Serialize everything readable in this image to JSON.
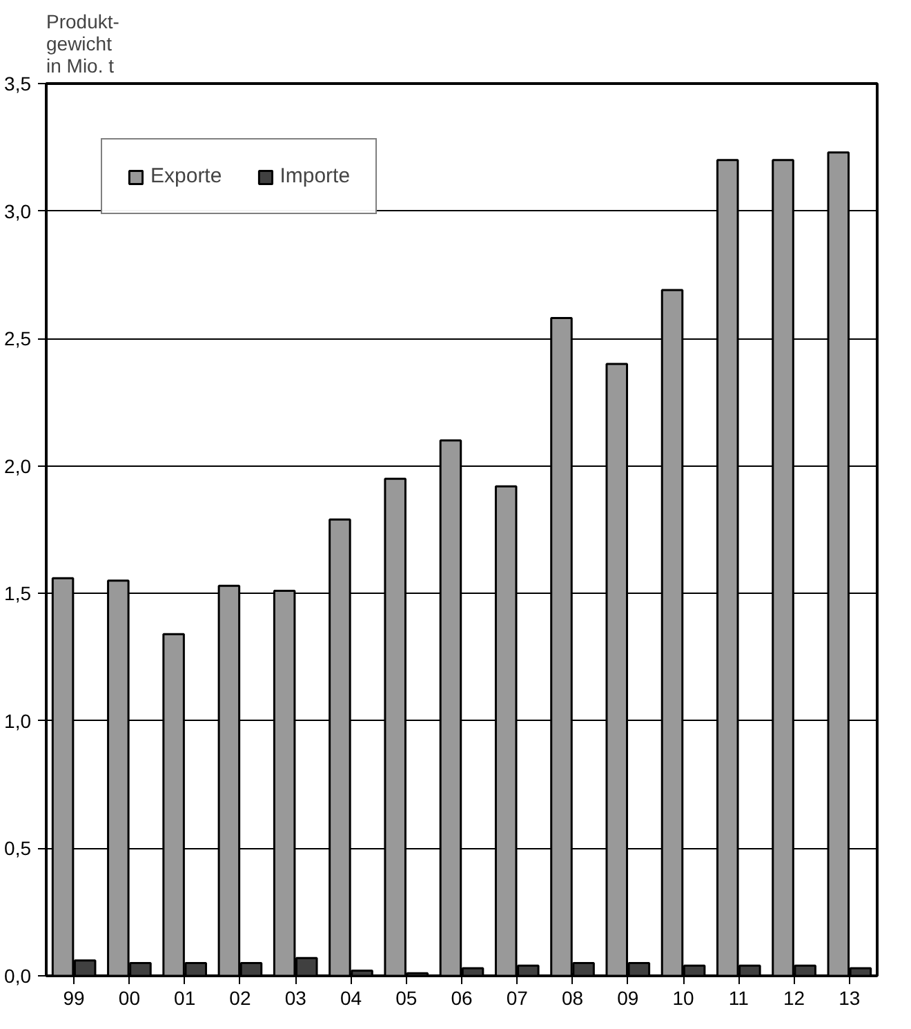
{
  "chart_data": {
    "type": "bar",
    "ylabel": "Produkt-\ngewicht\nin Mio. t",
    "categories": [
      "99",
      "00",
      "01",
      "02",
      "03",
      "04",
      "05",
      "06",
      "07",
      "08",
      "09",
      "10",
      "11",
      "12",
      "13"
    ],
    "series": [
      {
        "name": "Exporte",
        "color": "#999999",
        "values": [
          1.56,
          1.55,
          1.34,
          1.53,
          1.51,
          1.79,
          1.95,
          2.1,
          1.92,
          2.58,
          2.4,
          2.69,
          3.2,
          3.2,
          3.23
        ]
      },
      {
        "name": "Importe",
        "color": "#404040",
        "values": [
          0.06,
          0.05,
          0.05,
          0.05,
          0.07,
          0.02,
          0.01,
          0.03,
          0.04,
          0.05,
          0.05,
          0.04,
          0.04,
          0.04,
          0.03
        ]
      }
    ],
    "ylim": [
      0,
      3.5
    ],
    "yticks": [
      {
        "value": 0,
        "label": "0,0"
      },
      {
        "value": 0.5,
        "label": "0,5"
      },
      {
        "value": 1,
        "label": "1,0"
      },
      {
        "value": 1.5,
        "label": "1,5"
      },
      {
        "value": 2,
        "label": "2,0"
      },
      {
        "value": 2.5,
        "label": "2,5"
      },
      {
        "value": 3,
        "label": "3,0"
      },
      {
        "value": 3.5,
        "label": "3,5"
      }
    ],
    "grid": "y",
    "legend": "top left"
  }
}
